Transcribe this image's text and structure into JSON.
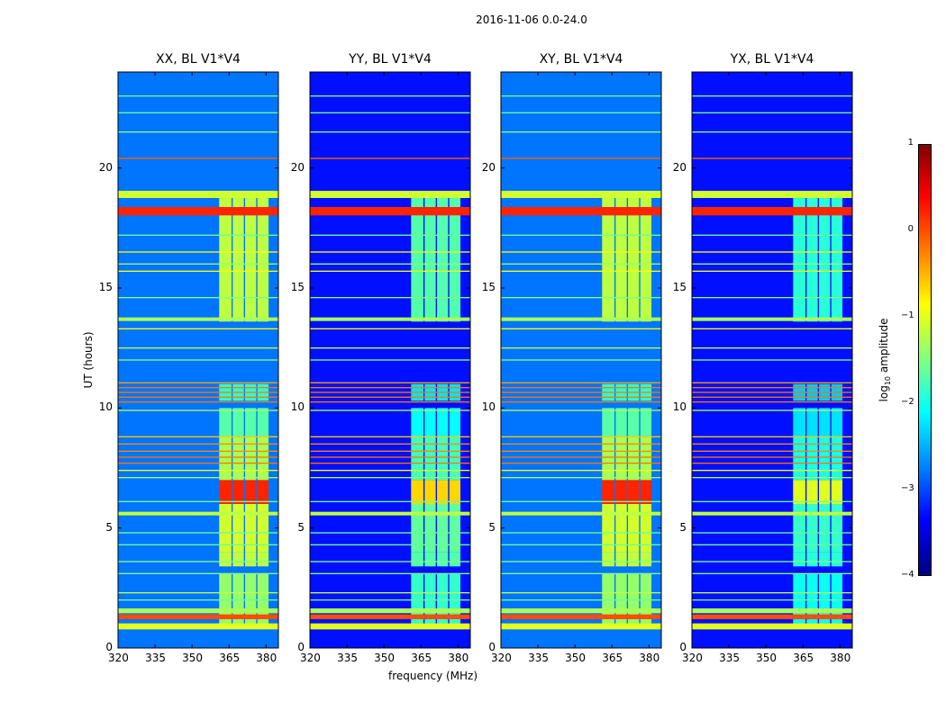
{
  "suptitle": "2016-11-06 0.0-24.0",
  "ylabel": "UT (hours)",
  "xlabel": "frequency (MHz)",
  "colorbar": {
    "label_main": "log",
    "label_sub": "10",
    "label_rest": " amplitude",
    "ticks": [
      "1",
      "0",
      "−1",
      "−2",
      "−3",
      "−4"
    ],
    "range": [
      -4,
      1
    ],
    "colormap": "jet"
  },
  "chart_data": {
    "type": "heatmap",
    "title": "2016-11-06 0.0-24.0",
    "xlabel": "frequency (MHz)",
    "ylabel": "UT (hours)",
    "xlim": [
      320,
      385
    ],
    "ylim": [
      0,
      24
    ],
    "x_ticks": [
      "320",
      "335",
      "350",
      "365",
      "380"
    ],
    "y_ticks": [
      "0",
      "5",
      "10",
      "15",
      "20"
    ],
    "colorbar_range": [
      -4,
      1
    ],
    "colorbar_label": "log10 amplitude",
    "panels": [
      {
        "title": "XX, BL V1*V4",
        "background": -2.8,
        "band_strength": 1.0
      },
      {
        "title": "YY, BL V1*V4",
        "background": -3.3,
        "band_strength": 0.75
      },
      {
        "title": "XY, BL V1*V4",
        "background": -2.8,
        "band_strength": 1.0
      },
      {
        "title": "YX, BL V1*V4",
        "background": -3.3,
        "band_strength": 0.65
      }
    ],
    "rfi_columns_mhz": [
      {
        "start": 361,
        "end": 366
      },
      {
        "start": 366.5,
        "end": 371
      },
      {
        "start": 371.5,
        "end": 376
      },
      {
        "start": 376.5,
        "end": 381
      }
    ],
    "rfi_active_hours": [
      {
        "start": 1.0,
        "end": 3.1,
        "level": -1.4
      },
      {
        "start": 3.4,
        "end": 4.0,
        "level": -1.2
      },
      {
        "start": 4.0,
        "end": 6.0,
        "level": -1.1
      },
      {
        "start": 6.0,
        "end": 7.0,
        "level": 0.2
      },
      {
        "start": 7.0,
        "end": 8.8,
        "level": -1.3
      },
      {
        "start": 8.8,
        "end": 10.0,
        "level": -1.7
      },
      {
        "start": 10.3,
        "end": 11.0,
        "level": -1.9
      },
      {
        "start": 13.6,
        "end": 18.8,
        "level": -1.2
      }
    ],
    "horizontal_lines_hours": [
      {
        "t": 0.9,
        "level": -1.0,
        "w": 0.25
      },
      {
        "t": 1.3,
        "level": 0.0,
        "w": 0.2
      },
      {
        "t": 1.55,
        "level": -1.3,
        "w": 0.2
      },
      {
        "t": 2.0,
        "level": -1.6,
        "w": 0.05
      },
      {
        "t": 2.3,
        "level": -1.2,
        "w": 0.05
      },
      {
        "t": 3.1,
        "level": -1.5,
        "w": 0.05
      },
      {
        "t": 3.6,
        "level": -1.5,
        "w": 0.05
      },
      {
        "t": 4.3,
        "level": -1.6,
        "w": 0.05
      },
      {
        "t": 4.8,
        "level": -1.6,
        "w": 0.05
      },
      {
        "t": 5.6,
        "level": -1.2,
        "w": 0.15
      },
      {
        "t": 6.1,
        "level": -1.6,
        "w": 0.05
      },
      {
        "t": 7.1,
        "level": -1.3,
        "w": 0.05
      },
      {
        "t": 7.4,
        "level": -0.9,
        "w": 0.05
      },
      {
        "t": 7.7,
        "level": -0.2,
        "w": 0.05
      },
      {
        "t": 7.95,
        "level": -0.2,
        "w": 0.05
      },
      {
        "t": 8.2,
        "level": -0.3,
        "w": 0.05
      },
      {
        "t": 8.5,
        "level": -0.3,
        "w": 0.05
      },
      {
        "t": 8.8,
        "level": -0.6,
        "w": 0.05
      },
      {
        "t": 9.9,
        "level": -1.3,
        "w": 0.05
      },
      {
        "t": 10.25,
        "level": -0.2,
        "w": 0.05
      },
      {
        "t": 10.45,
        "level": -0.2,
        "w": 0.05
      },
      {
        "t": 10.65,
        "level": -0.2,
        "w": 0.05
      },
      {
        "t": 10.85,
        "level": -0.2,
        "w": 0.05
      },
      {
        "t": 11.05,
        "level": -0.4,
        "w": 0.05
      },
      {
        "t": 12.0,
        "level": -1.5,
        "w": 0.05
      },
      {
        "t": 12.5,
        "level": -1.2,
        "w": 0.05
      },
      {
        "t": 13.3,
        "level": -0.9,
        "w": 0.05
      },
      {
        "t": 13.7,
        "level": -1.3,
        "w": 0.15
      },
      {
        "t": 14.6,
        "level": -1.5,
        "w": 0.05
      },
      {
        "t": 15.7,
        "level": -0.9,
        "w": 0.05
      },
      {
        "t": 16.0,
        "level": -1.4,
        "w": 0.05
      },
      {
        "t": 16.5,
        "level": -0.9,
        "w": 0.05
      },
      {
        "t": 17.2,
        "level": -1.6,
        "w": 0.05
      },
      {
        "t": 18.2,
        "level": 0.2,
        "w": 0.35
      },
      {
        "t": 18.9,
        "level": -1.1,
        "w": 0.3
      },
      {
        "t": 20.4,
        "level": -0.1,
        "w": 0.05
      },
      {
        "t": 21.5,
        "level": -1.5,
        "w": 0.05
      },
      {
        "t": 22.3,
        "level": -1.6,
        "w": 0.05
      },
      {
        "t": 23.0,
        "level": -1.6,
        "w": 0.05
      }
    ]
  }
}
